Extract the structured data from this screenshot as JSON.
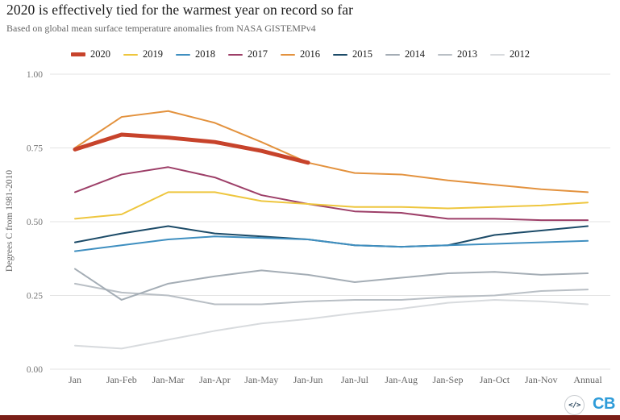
{
  "header": {
    "title": "2020 is effectively tied for the warmest year on record so far",
    "subtitle": "Based on global mean surface temperature anomalies from NASA GISTEMPv4"
  },
  "chart_data": {
    "type": "line",
    "title": "2020 is effectively tied for the warmest year on record so far",
    "subtitle": "Based on global mean surface temperature anomalies from NASA GISTEMPv4",
    "xlabel": "",
    "ylabel": "Degrees C from 1981-2010",
    "ylim": [
      0,
      1
    ],
    "ytick_labels": [
      "0.00",
      "0.25",
      "0.50",
      "0.75",
      "1.00"
    ],
    "ytick_values": [
      0,
      0.25,
      0.5,
      0.75,
      1.0
    ],
    "grid": "horizontal",
    "legend_position": "top",
    "categories": [
      "Jan",
      "Jan-Feb",
      "Jan-Mar",
      "Jan-Apr",
      "Jan-May",
      "Jan-Jun",
      "Jan-Jul",
      "Jan-Aug",
      "Jan-Sep",
      "Jan-Oct",
      "Jan-Nov",
      "Annual"
    ],
    "series": [
      {
        "name": "2020",
        "color": "#c7432b",
        "width": 5,
        "values": [
          0.745,
          0.795,
          0.785,
          0.77,
          0.74,
          0.7,
          null,
          null,
          null,
          null,
          null,
          null
        ]
      },
      {
        "name": "2019",
        "color": "#eec63e",
        "width": 2,
        "values": [
          0.51,
          0.525,
          0.6,
          0.6,
          0.57,
          0.56,
          0.55,
          0.55,
          0.545,
          0.55,
          0.555,
          0.565
        ]
      },
      {
        "name": "2018",
        "color": "#3f8fc0",
        "width": 2,
        "values": [
          0.4,
          0.42,
          0.44,
          0.45,
          0.445,
          0.44,
          0.42,
          0.415,
          0.42,
          0.425,
          0.43,
          0.435
        ]
      },
      {
        "name": "2017",
        "color": "#9d3f68",
        "width": 2,
        "values": [
          0.6,
          0.66,
          0.685,
          0.65,
          0.59,
          0.56,
          0.535,
          0.53,
          0.51,
          0.51,
          0.505,
          0.505
        ]
      },
      {
        "name": "2016",
        "color": "#e3923e",
        "width": 2,
        "values": [
          0.75,
          0.855,
          0.875,
          0.835,
          0.77,
          0.7,
          0.665,
          0.66,
          0.64,
          0.625,
          0.61,
          0.6
        ]
      },
      {
        "name": "2015",
        "color": "#1c4b68",
        "width": 2,
        "values": [
          0.43,
          0.46,
          0.485,
          0.46,
          0.45,
          0.44,
          0.42,
          0.415,
          0.42,
          0.455,
          0.47,
          0.485
        ]
      },
      {
        "name": "2014",
        "color": "#a4adb5",
        "width": 2,
        "values": [
          0.34,
          0.235,
          0.29,
          0.315,
          0.335,
          0.32,
          0.295,
          0.31,
          0.325,
          0.33,
          0.32,
          0.325
        ]
      },
      {
        "name": "2013",
        "color": "#b9bfc5",
        "width": 2,
        "values": [
          0.29,
          0.26,
          0.25,
          0.22,
          0.22,
          0.23,
          0.235,
          0.235,
          0.245,
          0.25,
          0.265,
          0.27
        ]
      },
      {
        "name": "2012",
        "color": "#d8dbde",
        "width": 2,
        "values": [
          0.08,
          0.07,
          0.1,
          0.13,
          0.155,
          0.17,
          0.19,
          0.205,
          0.225,
          0.235,
          0.23,
          0.22
        ]
      }
    ]
  },
  "footer": {
    "embed_icon": "</>",
    "logo_text": "CB",
    "logo_color": "#2f9cd9",
    "bar_color": "#7a1f18"
  },
  "colors": {
    "grid_line": "#e3e3e3",
    "tick_text": "#777777",
    "axis_label_text": "#666666"
  }
}
